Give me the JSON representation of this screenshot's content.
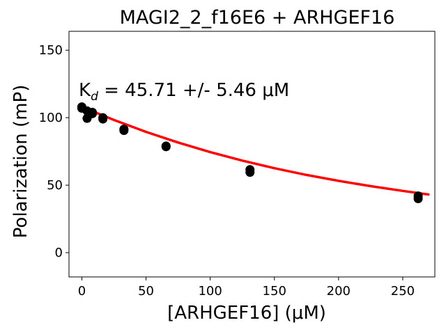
{
  "chart_data": {
    "type": "scatter",
    "title": "MAGI2_2_f16E6 + ARHGEF16",
    "xlabel": "[ARHGEF16] (μM)",
    "ylabel": "Polarization (mP)",
    "xlim": [
      -10,
      275
    ],
    "ylim": [
      -18,
      164
    ],
    "xticks": [
      0,
      50,
      100,
      150,
      200,
      250
    ],
    "yticks": [
      0,
      50,
      100,
      150
    ],
    "annotation": {
      "prefix": "K",
      "subscript": "d",
      "text": " = 45.71 +/- 5.46 μM"
    },
    "series": [
      {
        "kind": "points",
        "color": "#000000",
        "x": [
          0,
          0,
          4.1,
          4.1,
          8.2,
          8.2,
          16.4,
          16.4,
          32.8,
          32.8,
          65.6,
          65.6,
          131,
          131,
          262,
          262
        ],
        "y": [
          108,
          107,
          105,
          99.5,
          104,
          103,
          100,
          99,
          91.5,
          90.5,
          79,
          78.5,
          61.5,
          59.5,
          42,
          40
        ]
      },
      {
        "kind": "fit",
        "color": "#ff0000",
        "x": [
          0,
          25,
          50,
          75,
          100,
          125,
          150,
          175,
          200,
          225,
          250,
          270
        ],
        "y": [
          108,
          98.3,
          89.5,
          81.6,
          74.5,
          68.2,
          62.6,
          57.6,
          53.2,
          49.3,
          45.8,
          43.1
        ]
      }
    ]
  }
}
